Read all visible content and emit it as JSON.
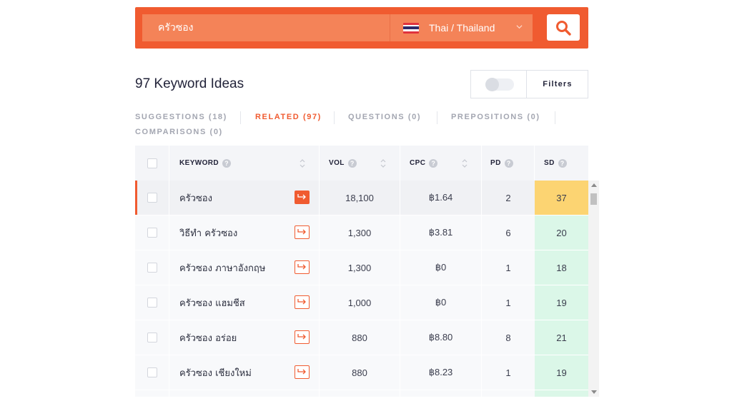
{
  "search": {
    "keyword": "ครัวซอง",
    "language": "Thai / Thailand",
    "flag": "thailand-flag",
    "search_icon": "magnifier-icon"
  },
  "header": {
    "title": "97 Keyword Ideas",
    "filters_label": "Filters",
    "toggle_on": false
  },
  "tabs": [
    {
      "label": "SUGGESTIONS (18)",
      "active": false
    },
    {
      "label": "RELATED (97)",
      "active": true
    },
    {
      "label": "QUESTIONS (0)",
      "active": false
    },
    {
      "label": "PREPOSITIONS (0)",
      "active": false
    },
    {
      "label": "COMPARISONS (0)",
      "active": false
    }
  ],
  "table": {
    "columns": {
      "keyword": "KEYWORD",
      "vol": "VOL",
      "cpc": "CPC",
      "pd": "PD",
      "sd": "SD",
      "help": "?"
    },
    "rows": [
      {
        "keyword": "ครัวซอง",
        "vol": "18,100",
        "cpc": "฿1.64",
        "pd": "2",
        "sd": "37",
        "selected": true
      },
      {
        "keyword": "วิธีทำ ครัวซอง",
        "vol": "1,300",
        "cpc": "฿3.81",
        "pd": "6",
        "sd": "20",
        "selected": false
      },
      {
        "keyword": "ครัวซอง ภาษาอังกฤษ",
        "vol": "1,300",
        "cpc": "฿0",
        "pd": "1",
        "sd": "18",
        "selected": false
      },
      {
        "keyword": "ครัวซอง แฮมชีส",
        "vol": "1,000",
        "cpc": "฿0",
        "pd": "1",
        "sd": "19",
        "selected": false
      },
      {
        "keyword": "ครัวซอง อร่อย",
        "vol": "880",
        "cpc": "฿8.80",
        "pd": "8",
        "sd": "21",
        "selected": false
      },
      {
        "keyword": "ครัวซอง เชียงใหม่",
        "vol": "880",
        "cpc": "฿8.23",
        "pd": "1",
        "sd": "19",
        "selected": false
      }
    ]
  },
  "colors": {
    "accent": "#f05b30",
    "sd_medium": "#fcd472",
    "sd_easy": "#dbf7e8"
  }
}
